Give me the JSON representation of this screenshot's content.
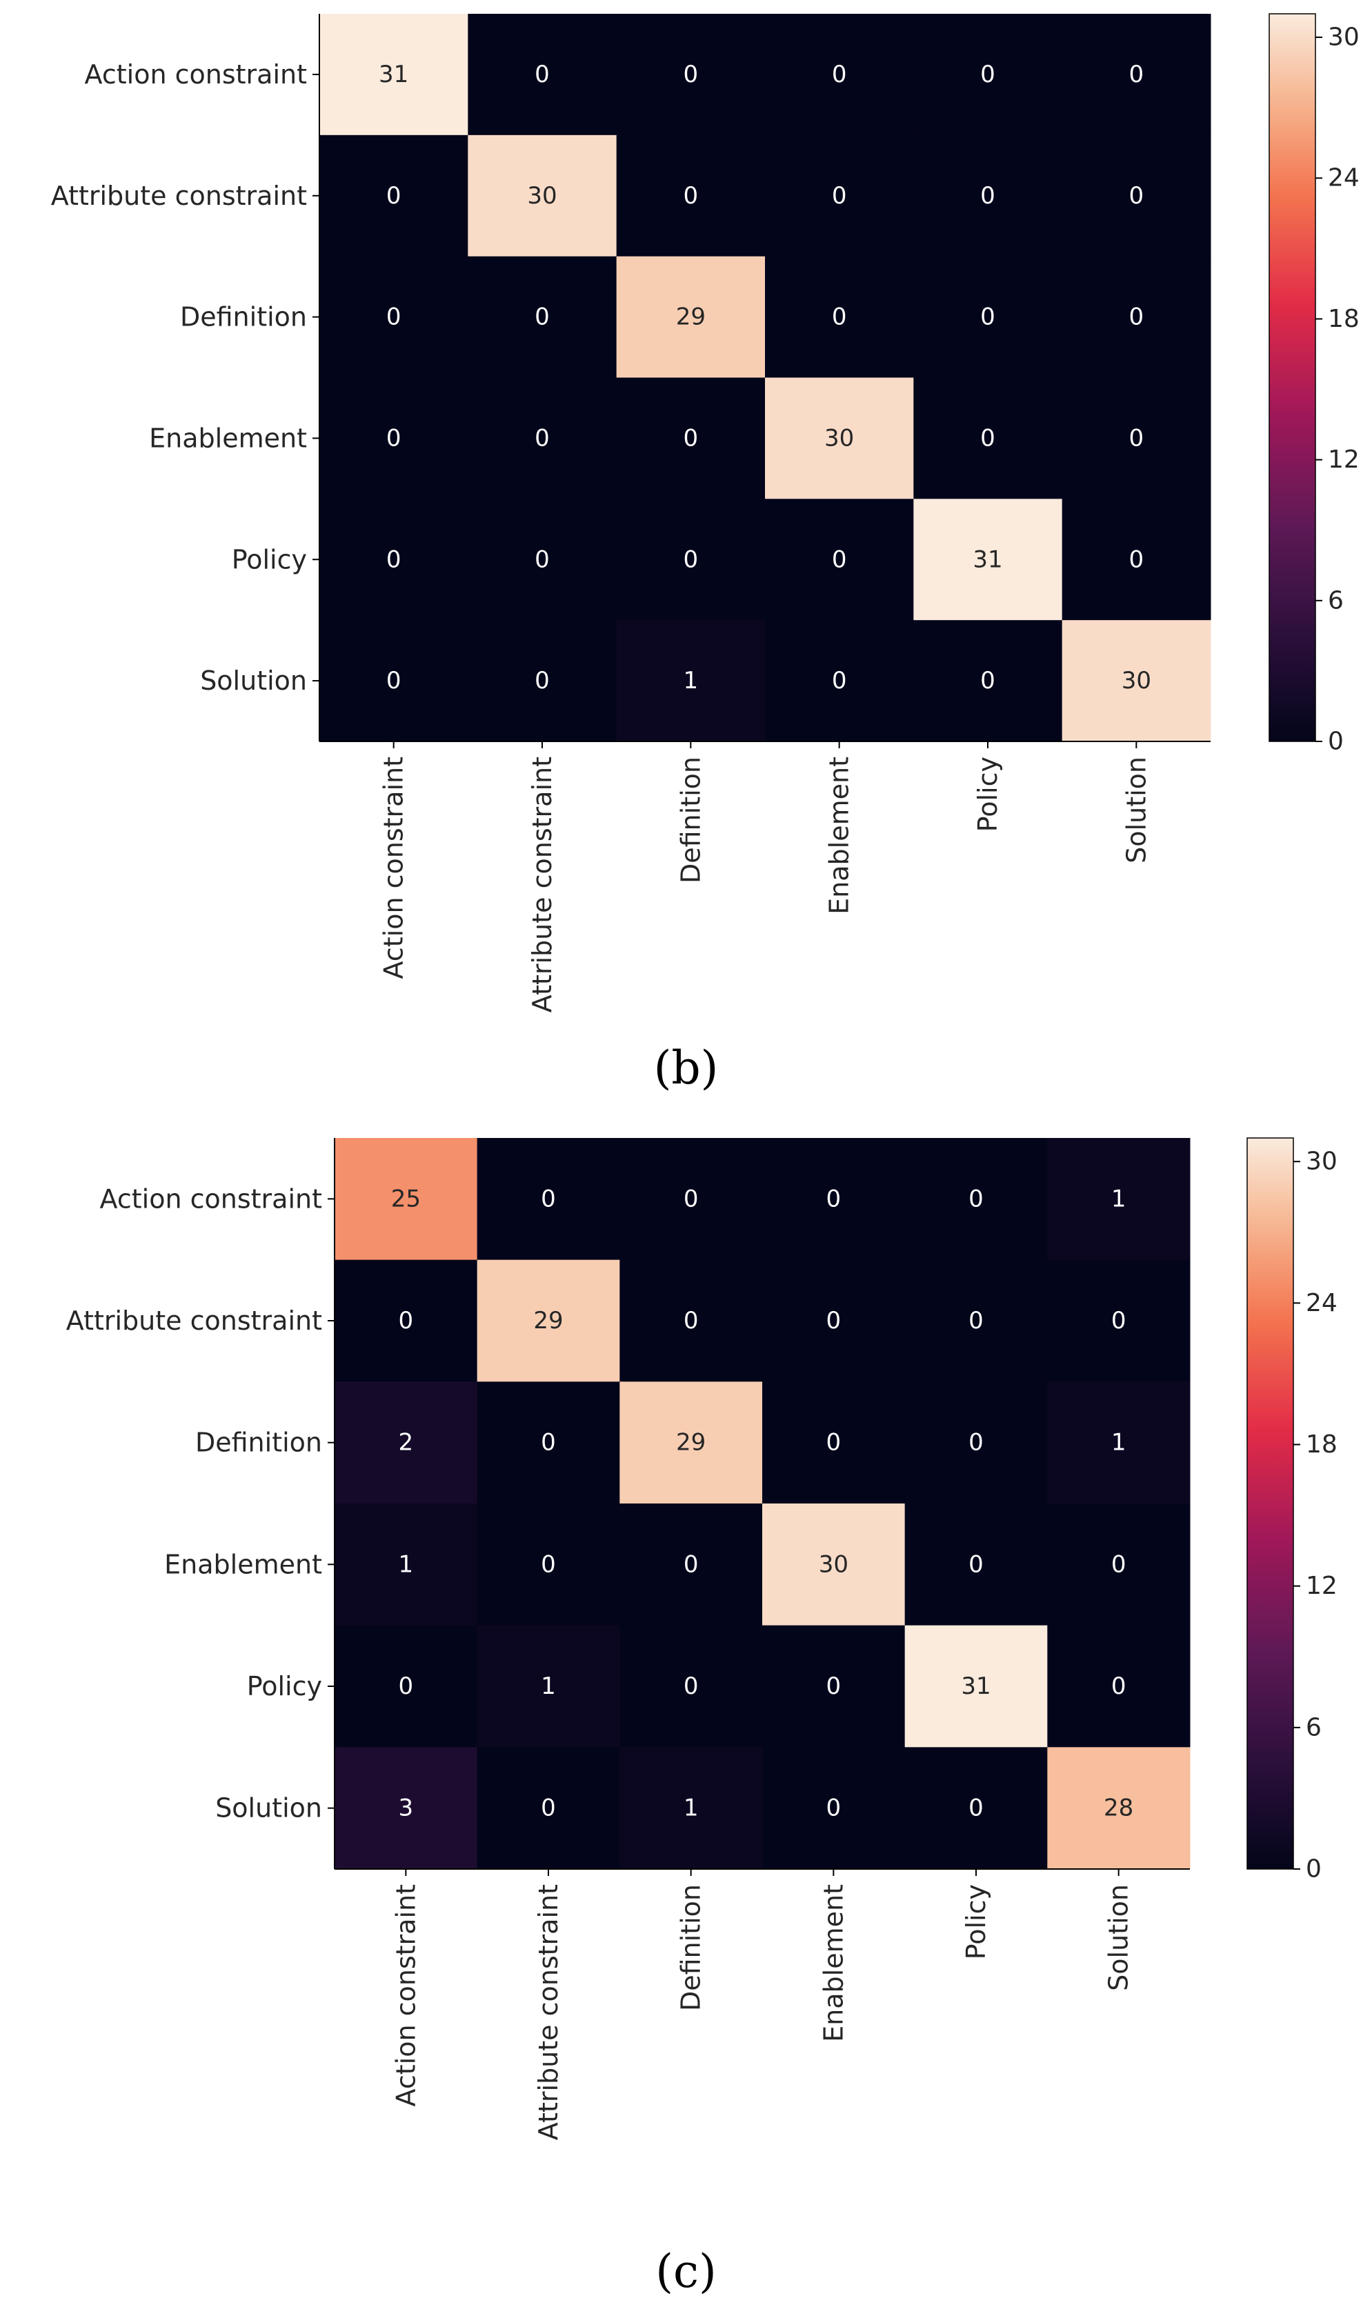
{
  "chart_data": [
    {
      "type": "heatmap",
      "panel_label": "b",
      "caption": "(b)",
      "rows": [
        "Action constraint",
        "Attribute constraint",
        "Definition",
        "Enablement",
        "Policy",
        "Solution"
      ],
      "cols": [
        "Action constraint",
        "Attribute constraint",
        "Definition",
        "Enablement",
        "Policy",
        "Solution"
      ],
      "values": [
        [
          31,
          0,
          0,
          0,
          0,
          0
        ],
        [
          0,
          30,
          0,
          0,
          0,
          0
        ],
        [
          0,
          0,
          29,
          0,
          0,
          0
        ],
        [
          0,
          0,
          0,
          30,
          0,
          0
        ],
        [
          0,
          0,
          0,
          0,
          31,
          0
        ],
        [
          0,
          0,
          1,
          0,
          0,
          30
        ]
      ],
      "colorbar": {
        "min": 0,
        "max": 31,
        "ticks": [
          0,
          6,
          12,
          18,
          24,
          30
        ]
      }
    },
    {
      "type": "heatmap",
      "panel_label": "c",
      "caption": "(c)",
      "rows": [
        "Action constraint",
        "Attribute constraint",
        "Definition",
        "Enablement",
        "Policy",
        "Solution"
      ],
      "cols": [
        "Action constraint",
        "Attribute constraint",
        "Definition",
        "Enablement",
        "Policy",
        "Solution"
      ],
      "values": [
        [
          25,
          0,
          0,
          0,
          0,
          1
        ],
        [
          0,
          29,
          0,
          0,
          0,
          0
        ],
        [
          2,
          0,
          29,
          0,
          0,
          1
        ],
        [
          1,
          0,
          0,
          30,
          0,
          0
        ],
        [
          0,
          1,
          0,
          0,
          31,
          0
        ],
        [
          3,
          0,
          1,
          0,
          0,
          28
        ]
      ],
      "colorbar": {
        "min": 0,
        "max": 31,
        "ticks": [
          0,
          6,
          12,
          18,
          24,
          30
        ]
      }
    }
  ]
}
